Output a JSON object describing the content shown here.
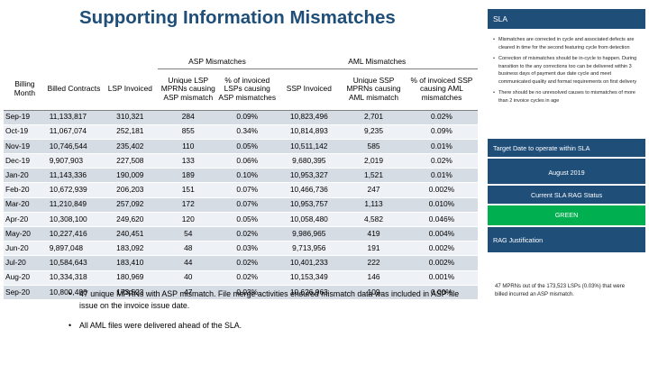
{
  "title": "Supporting Information Mismatches",
  "table": {
    "group_headers": {
      "asp": "ASP Mismatches",
      "aml": "AML Mismatches"
    },
    "columns": [
      "Billing Month",
      "Billed Contracts",
      "LSP Invoiced",
      "Unique LSP MPRNs causing ASP mismatch",
      "% of invoiced LSPs causing ASP mismatches",
      "SSP Invoiced",
      "Unique SSP MPRNs causing AML mismatch",
      "% of invoiced SSP causing AML mismatches"
    ],
    "rows": [
      [
        "Sep-19",
        "11,133,817",
        "310,321",
        "284",
        "0.09%",
        "10,823,496",
        "2,701",
        "0.02%"
      ],
      [
        "Oct-19",
        "11,067,074",
        "252,181",
        "855",
        "0.34%",
        "10,814,893",
        "9,235",
        "0.09%"
      ],
      [
        "Nov-19",
        "10,746,544",
        "235,402",
        "110",
        "0.05%",
        "10,511,142",
        "585",
        "0.01%"
      ],
      [
        "Dec-19",
        "9,907,903",
        "227,508",
        "133",
        "0.06%",
        "9,680,395",
        "2,019",
        "0.02%"
      ],
      [
        "Jan-20",
        "11,143,336",
        "190,009",
        "189",
        "0.10%",
        "10,953,327",
        "1,521",
        "0.01%"
      ],
      [
        "Feb-20",
        "10,672,939",
        "206,203",
        "151",
        "0.07%",
        "10,466,736",
        "247",
        "0.002%"
      ],
      [
        "Mar-20",
        "11,210,849",
        "257,092",
        "172",
        "0.07%",
        "10,953,757",
        "1,113",
        "0.010%"
      ],
      [
        "Apr-20",
        "10,308,100",
        "249,620",
        "120",
        "0.05%",
        "10,058,480",
        "4,582",
        "0.046%"
      ],
      [
        "May-20",
        "10,227,416",
        "240,451",
        "54",
        "0.02%",
        "9,986,965",
        "419",
        "0.004%"
      ],
      [
        "Jun-20",
        "9,897,048",
        "183,092",
        "48",
        "0.03%",
        "9,713,956",
        "191",
        "0.002%"
      ],
      [
        "Jul-20",
        "10,584,643",
        "183,410",
        "44",
        "0.02%",
        "10,401,233",
        "222",
        "0.002%"
      ],
      [
        "Aug-20",
        "10,334,318",
        "180,969",
        "40",
        "0.02%",
        "10,153,349",
        "146",
        "0.001%"
      ],
      [
        "Sep-20",
        "10,800,486",
        "173,523",
        "47",
        "0.03%",
        "10,626,963",
        "109",
        "0.00%"
      ]
    ]
  },
  "bullets": [
    "47 unique MPRNs with ASP mismatch. File merge activities ensured mismatch data was included in ASP file issue on the invoice issue date.",
    "All AML files were delivered ahead of the SLA."
  ],
  "sla": {
    "header": "SLA",
    "items": [
      "Mismatches are corrected in cycle and associated defects are cleared in time for the second featuring cycle from detection",
      "Correction of mismatches should be in-cycle to happen. During transition to the any corrections too can be delivered within 3 business days of payment due date cycle and meet communicated quality and format requirements on first delivery",
      "There should be no unresolved causes to mismatches of more than 2 invoice cycles in age"
    ],
    "target_label": "Target Date to operate within SLA",
    "target_date": "August 2019",
    "rag_status_label": "Current SLA RAG Status",
    "rag_status_value": "GREEN",
    "rag_status_color": "#00b050",
    "rag_justification_label": "RAG Justification",
    "rag_justification_text": "47 MPRNs out of the 173,523 LSPs (0.03%) that were billed incurred an ASP mismatch."
  }
}
